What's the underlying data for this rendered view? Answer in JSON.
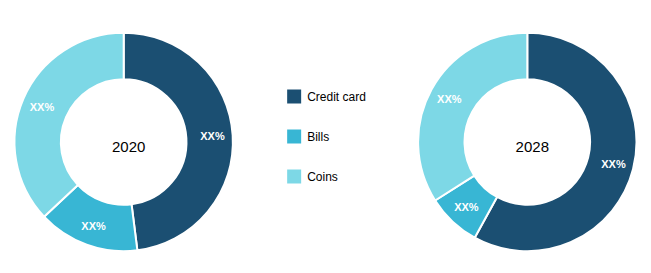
{
  "chart_data": [
    {
      "type": "pie",
      "title": "2020",
      "categories": [
        "Credit card",
        "Bills",
        "Coins"
      ],
      "values": [
        48,
        15,
        37
      ],
      "value_labels": [
        "XX%",
        "XX%",
        "XX%"
      ],
      "colors": [
        "#1b4f72",
        "#38b6d4",
        "#7dd8e6"
      ],
      "data_labels": true,
      "legend": "center"
    },
    {
      "type": "pie",
      "title": "2028",
      "categories": [
        "Credit card",
        "Bills",
        "Coins"
      ],
      "values": [
        58,
        8,
        34
      ],
      "value_labels": [
        "XX%",
        "XX%",
        "XX%"
      ],
      "colors": [
        "#1b4f72",
        "#38b6d4",
        "#7dd8e6"
      ],
      "data_labels": true,
      "legend": "center"
    }
  ]
}
